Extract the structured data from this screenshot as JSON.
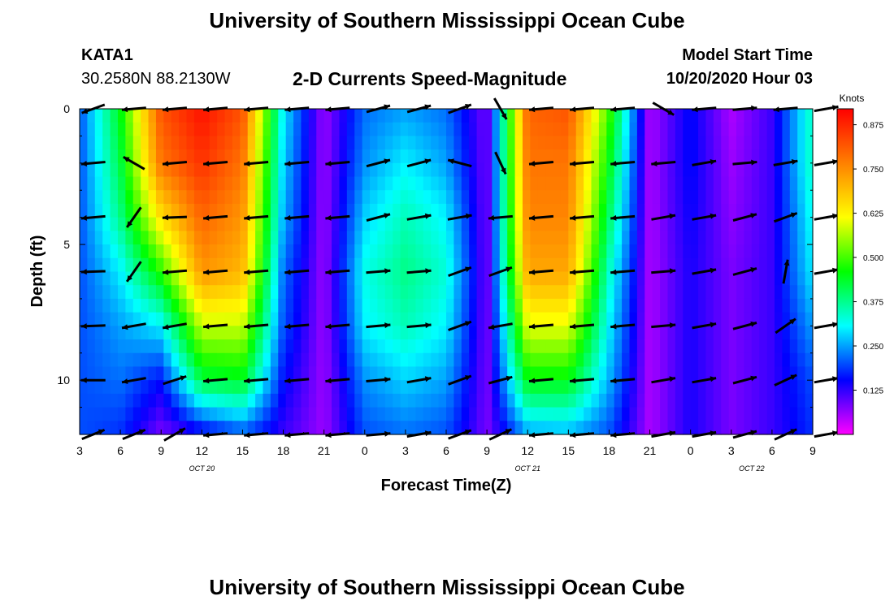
{
  "header": {
    "title": "University of Southern Mississippi Ocean Cube",
    "station_id": "KATA1",
    "station_coords": "30.2580N 88.2130W",
    "chart_title": "2-D Currents Speed-Magnitude",
    "model_start_label": "Model Start Time",
    "model_start_value": "10/20/2020 Hour 03"
  },
  "footer": {
    "title": "University of Southern Mississippi Ocean Cube"
  },
  "chart_data": {
    "type": "heatmap",
    "title": "2-D Currents Speed-Magnitude",
    "xlabel": "Forecast Time(Z)",
    "ylabel": "Depth (ft)",
    "x_hours": [
      0,
      54
    ],
    "x_ticks": [
      "3",
      "6",
      "9",
      "12",
      "15",
      "18",
      "21",
      "0",
      "3",
      "6",
      "9",
      "12",
      "15",
      "18",
      "21",
      "0",
      "3",
      "6",
      "9"
    ],
    "date_labels": [
      {
        "hour": 9,
        "text": "OCT 20"
      },
      {
        "hour": 33,
        "text": "OCT 21"
      },
      {
        "hour": 49.5,
        "text": "OCT 22"
      }
    ],
    "y_ticks": [
      0,
      5,
      10
    ],
    "ylim": [
      0,
      12
    ],
    "colorbar": {
      "label": "Knots",
      "ticks": [
        "0.875",
        "0.750",
        "0.625",
        "0.500",
        "0.375",
        "0.250",
        "0.125"
      ],
      "tick_values": [
        0.875,
        0.75,
        0.625,
        0.5,
        0.375,
        0.25,
        0.125
      ],
      "range": [
        0,
        0.92
      ],
      "stops": [
        "#ff00ff",
        "#0000ff",
        "#00ffff",
        "#00ff00",
        "#ffff00",
        "#ff8000",
        "#ff0000"
      ]
    },
    "time_columns_hours": [
      0,
      3,
      6,
      9,
      12,
      15,
      18,
      21,
      24,
      27,
      30,
      33,
      36,
      39,
      42,
      45,
      48,
      51,
      54
    ],
    "depths_ft": [
      0,
      2,
      4,
      6,
      8,
      10,
      12
    ],
    "speed_knots": [
      [
        0.2,
        0.2,
        0.2,
        0.2,
        0.2,
        0.2,
        0.2
      ],
      [
        0.45,
        0.42,
        0.38,
        0.3,
        0.25,
        0.22,
        0.18
      ],
      [
        0.82,
        0.78,
        0.65,
        0.48,
        0.3,
        0.16,
        0.08
      ],
      [
        0.9,
        0.86,
        0.8,
        0.74,
        0.58,
        0.42,
        0.14
      ],
      [
        0.82,
        0.78,
        0.74,
        0.7,
        0.58,
        0.44,
        0.2
      ],
      [
        0.3,
        0.28,
        0.26,
        0.22,
        0.2,
        0.16,
        0.12
      ],
      [
        0.06,
        0.06,
        0.06,
        0.06,
        0.06,
        0.06,
        0.06
      ],
      [
        0.22,
        0.24,
        0.28,
        0.32,
        0.3,
        0.24,
        0.2
      ],
      [
        0.25,
        0.3,
        0.35,
        0.38,
        0.35,
        0.28,
        0.22
      ],
      [
        0.22,
        0.25,
        0.3,
        0.33,
        0.3,
        0.25,
        0.2
      ],
      [
        0.08,
        0.08,
        0.08,
        0.08,
        0.08,
        0.08,
        0.08
      ],
      [
        0.8,
        0.78,
        0.76,
        0.72,
        0.6,
        0.45,
        0.25
      ],
      [
        0.82,
        0.78,
        0.76,
        0.72,
        0.6,
        0.45,
        0.26
      ],
      [
        0.5,
        0.45,
        0.4,
        0.34,
        0.3,
        0.26,
        0.2
      ],
      [
        0.05,
        0.05,
        0.05,
        0.05,
        0.05,
        0.05,
        0.05
      ],
      [
        0.16,
        0.16,
        0.15,
        0.14,
        0.14,
        0.14,
        0.14
      ],
      [
        0.05,
        0.06,
        0.07,
        0.08,
        0.08,
        0.08,
        0.08
      ],
      [
        0.12,
        0.12,
        0.12,
        0.12,
        0.12,
        0.12,
        0.12
      ],
      [
        0.35,
        0.35,
        0.32,
        0.3,
        0.25,
        0.2,
        0.18
      ]
    ],
    "vector_columns_hours": [
      1,
      4,
      7,
      10,
      13,
      16,
      19,
      22,
      25,
      28,
      31,
      34,
      37,
      40,
      43,
      46,
      49,
      52,
      55
    ],
    "vector_directions_deg": [
      [
        200,
        185,
        185,
        182,
        182,
        180,
        22
      ],
      [
        185,
        150,
        235,
        235,
        190,
        190,
        22
      ],
      [
        185,
        185,
        182,
        185,
        190,
        18,
        30
      ],
      [
        185,
        185,
        185,
        185,
        185,
        185,
        185
      ],
      [
        185,
        185,
        185,
        185,
        185,
        185,
        185
      ],
      [
        185,
        185,
        185,
        185,
        185,
        185,
        185
      ],
      [
        185,
        185,
        185,
        185,
        185,
        185,
        185
      ],
      [
        15,
        15,
        15,
        5,
        5,
        5,
        5
      ],
      [
        15,
        15,
        10,
        5,
        5,
        10,
        10
      ],
      [
        20,
        165,
        10,
        20,
        20,
        20,
        20
      ],
      [
        300,
        295,
        185,
        20,
        190,
        15,
        25
      ],
      [
        185,
        185,
        185,
        185,
        185,
        185,
        185
      ],
      [
        185,
        185,
        185,
        185,
        185,
        185,
        185
      ],
      [
        185,
        185,
        185,
        185,
        185,
        185,
        185
      ],
      [
        330,
        185,
        10,
        5,
        5,
        10,
        10
      ],
      [
        185,
        10,
        10,
        10,
        10,
        10,
        10
      ],
      [
        5,
        5,
        15,
        15,
        15,
        15,
        15
      ],
      [
        185,
        10,
        20,
        80,
        35,
        25,
        25
      ],
      [
        10,
        10,
        10,
        10,
        10,
        10,
        10
      ]
    ]
  }
}
